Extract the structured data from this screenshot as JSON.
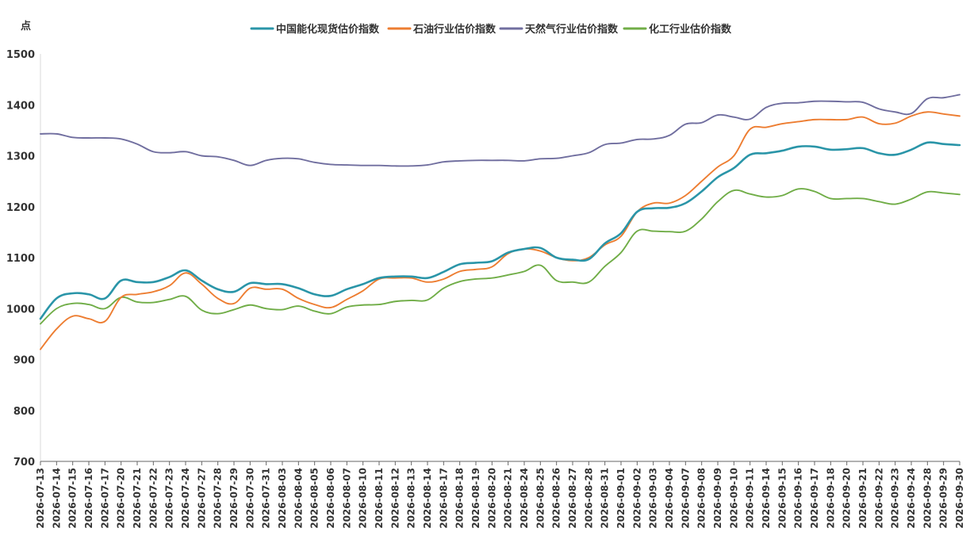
{
  "chart_data": {
    "type": "line",
    "title": "",
    "xlabel": "",
    "ylabel": "点",
    "ylim": [
      700,
      1500
    ],
    "yticks": [
      700,
      800,
      900,
      1000,
      1100,
      1200,
      1300,
      1400,
      1500
    ],
    "grid": false,
    "legend_position": "top-center",
    "categories": [
      "2026-07-13",
      "2026-07-14",
      "2026-07-15",
      "2026-07-16",
      "2026-07-17",
      "2026-07-20",
      "2026-07-21",
      "2026-07-22",
      "2026-07-23",
      "2026-07-24",
      "2026-07-27",
      "2026-07-28",
      "2026-07-29",
      "2026-07-30",
      "2026-07-31",
      "2026-08-03",
      "2026-08-04",
      "2026-08-05",
      "2026-08-06",
      "2026-08-07",
      "2026-08-10",
      "2026-08-11",
      "2026-08-12",
      "2026-08-13",
      "2026-08-14",
      "2026-08-17",
      "2026-08-18",
      "2026-08-19",
      "2026-08-20",
      "2026-08-21",
      "2026-08-24",
      "2026-08-25",
      "2026-08-26",
      "2026-08-27",
      "2026-08-28",
      "2026-08-31",
      "2026-09-01",
      "2026-09-02",
      "2026-09-03",
      "2026-09-04",
      "2026-09-07",
      "2026-09-08",
      "2026-09-09",
      "2026-09-10",
      "2026-09-11",
      "2026-09-14",
      "2026-09-15",
      "2026-09-16",
      "2026-09-17",
      "2026-09-18",
      "2026-09-20",
      "2026-09-21",
      "2026-09-22",
      "2026-09-23",
      "2026-09-24",
      "2026-09-28",
      "2026-09-29",
      "2026-09-30"
    ],
    "series": [
      {
        "name": "中国能化现货估价指数",
        "color": "#2a95a8",
        "values": [
          980,
          1020,
          1030,
          1028,
          1020,
          1055,
          1052,
          1052,
          1062,
          1075,
          1055,
          1038,
          1033,
          1050,
          1048,
          1048,
          1040,
          1028,
          1025,
          1038,
          1048,
          1060,
          1063,
          1063,
          1060,
          1072,
          1087,
          1090,
          1093,
          1110,
          1117,
          1119,
          1100,
          1096,
          1097,
          1128,
          1148,
          1190,
          1197,
          1198,
          1207,
          1230,
          1258,
          1276,
          1302,
          1305,
          1310,
          1318,
          1318,
          1312,
          1313,
          1315,
          1305,
          1302,
          1312,
          1326,
          1323,
          1321
        ]
      },
      {
        "name": "石油行业估价指数",
        "color": "#ed7d31",
        "values": [
          920,
          960,
          985,
          980,
          975,
          1022,
          1028,
          1033,
          1045,
          1070,
          1048,
          1020,
          1010,
          1040,
          1038,
          1038,
          1020,
          1008,
          1002,
          1018,
          1035,
          1058,
          1060,
          1060,
          1052,
          1058,
          1073,
          1077,
          1082,
          1108,
          1117,
          1113,
          1100,
          1094,
          1100,
          1125,
          1142,
          1190,
          1207,
          1207,
          1222,
          1250,
          1278,
          1300,
          1352,
          1356,
          1363,
          1367,
          1371,
          1371,
          1371,
          1376,
          1363,
          1364,
          1378,
          1386,
          1382,
          1378
        ]
      },
      {
        "name": "天然气行业估价指数",
        "color": "#706e9f",
        "values": [
          1343,
          1343,
          1336,
          1335,
          1335,
          1333,
          1323,
          1308,
          1306,
          1308,
          1300,
          1298,
          1291,
          1281,
          1291,
          1295,
          1294,
          1287,
          1283,
          1282,
          1281,
          1281,
          1280,
          1280,
          1282,
          1288,
          1290,
          1291,
          1291,
          1291,
          1290,
          1294,
          1295,
          1300,
          1306,
          1322,
          1325,
          1332,
          1333,
          1340,
          1362,
          1365,
          1380,
          1376,
          1372,
          1395,
          1403,
          1404,
          1407,
          1407,
          1406,
          1405,
          1392,
          1386,
          1383,
          1412,
          1414,
          1420
        ]
      },
      {
        "name": "化工行业估价指数",
        "color": "#70ad47",
        "values": [
          970,
          1000,
          1010,
          1008,
          1000,
          1022,
          1013,
          1012,
          1018,
          1024,
          997,
          990,
          998,
          1007,
          1000,
          998,
          1005,
          995,
          990,
          1003,
          1007,
          1008,
          1014,
          1016,
          1017,
          1040,
          1053,
          1058,
          1060,
          1066,
          1073,
          1085,
          1055,
          1052,
          1052,
          1083,
          1110,
          1152,
          1152,
          1151,
          1152,
          1176,
          1210,
          1232,
          1225,
          1219,
          1222,
          1235,
          1230,
          1216,
          1216,
          1216,
          1210,
          1205,
          1215,
          1229,
          1227,
          1224
        ]
      }
    ]
  }
}
